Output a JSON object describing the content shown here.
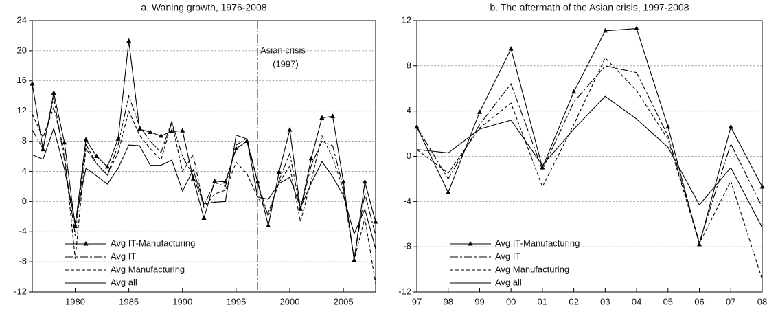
{
  "chart_data": [
    {
      "type": "line",
      "title": "a. Waning growth, 1976-2008",
      "x": [
        1976,
        1977,
        1978,
        1979,
        1980,
        1981,
        1982,
        1983,
        1984,
        1985,
        1986,
        1987,
        1988,
        1989,
        1990,
        1991,
        1992,
        1993,
        1994,
        1995,
        1996,
        1997,
        1998,
        1999,
        2000,
        2001,
        2002,
        2003,
        2004,
        2005,
        2006,
        2007,
        2008
      ],
      "xlim": [
        1976,
        2008
      ],
      "xticks": [
        1980,
        1985,
        1990,
        1995,
        2000,
        2005
      ],
      "ylim": [
        -12,
        24
      ],
      "yticks": [
        -12,
        -8,
        -4,
        0,
        4,
        8,
        12,
        16,
        20,
        24
      ],
      "grid": true,
      "vline": 1997,
      "annotation": [
        "Asian crisis",
        "(1997)"
      ],
      "legend": "lower left",
      "series": [
        {
          "name": "Avg IT-Manufacturing",
          "color": "#000000",
          "values": [
            15.6,
            6.9,
            14.4,
            7.8,
            -3.3,
            8.2,
            6.0,
            4.6,
            8.3,
            21.3,
            9.6,
            9.2,
            8.7,
            9.3,
            9.4,
            3.0,
            -2.2,
            2.7,
            2.6,
            7.0,
            8.0,
            2.6,
            -3.2,
            3.9,
            9.5,
            -1.0,
            5.7,
            11.1,
            11.3,
            2.6,
            -7.8,
            2.6,
            -2.7
          ]
        },
        {
          "name": "Avg IT",
          "color": "#000000",
          "values": [
            9.5,
            7.0,
            13.8,
            5.5,
            -4.5,
            7.6,
            5.0,
            3.5,
            7.5,
            14.0,
            10.0,
            8.0,
            6.5,
            10.6,
            6.0,
            3.4,
            -0.5,
            2.5,
            2.0,
            7.5,
            8.4,
            2.6,
            -2.0,
            2.8,
            6.4,
            -1.2,
            4.8,
            8.0,
            7.4,
            1.8,
            -7.6,
            1.1,
            -4.5
          ]
        },
        {
          "name": "Avg Manufacturing",
          "color": "#000000",
          "values": [
            11.6,
            8.5,
            12.5,
            6.5,
            -7.6,
            7.0,
            5.0,
            3.5,
            6.5,
            12.0,
            8.8,
            7.0,
            5.5,
            10.5,
            4.0,
            6.2,
            -0.8,
            1.0,
            1.5,
            5.2,
            3.7,
            0.6,
            -1.5,
            2.5,
            4.7,
            -2.7,
            2.8,
            8.7,
            5.8,
            1.5,
            -7.7,
            -2.2,
            -10.9
          ]
        },
        {
          "name": "Avg all",
          "color": "#000000",
          "values": [
            6.2,
            5.6,
            9.7,
            4.3,
            -2.8,
            4.4,
            3.4,
            2.3,
            4.4,
            7.5,
            7.4,
            4.8,
            4.8,
            5.5,
            1.4,
            4.2,
            -0.3,
            -0.1,
            0.0,
            8.8,
            8.3,
            0.6,
            0.3,
            2.4,
            3.2,
            -0.8,
            2.4,
            5.3,
            3.3,
            0.8,
            -4.3,
            -1.0,
            -6.3
          ]
        }
      ]
    },
    {
      "type": "line",
      "title": "b. The aftermath of the Asian crisis, 1997-2008",
      "categories": [
        "97",
        "98",
        "99",
        "00",
        "01",
        "02",
        "03",
        "04",
        "05",
        "06",
        "07",
        "08"
      ],
      "ylim": [
        -12,
        12
      ],
      "yticks": [
        -12,
        -8,
        -4,
        0,
        4,
        8,
        12
      ],
      "grid": true,
      "legend": "lower left",
      "series": [
        {
          "name": "Avg IT-Manufacturing",
          "color": "#000000",
          "values": [
            2.6,
            -3.2,
            3.9,
            9.5,
            -1.0,
            5.7,
            11.1,
            11.3,
            2.6,
            -7.8,
            2.6,
            -2.7
          ]
        },
        {
          "name": "Avg IT",
          "color": "#000000",
          "values": [
            2.6,
            -2.0,
            2.8,
            6.4,
            -1.2,
            4.8,
            8.0,
            7.4,
            1.8,
            -7.6,
            1.1,
            -4.5
          ]
        },
        {
          "name": "Avg Manufacturing",
          "color": "#000000",
          "values": [
            0.6,
            -1.5,
            2.5,
            4.7,
            -2.7,
            2.8,
            8.7,
            5.8,
            1.5,
            -7.7,
            -2.2,
            -10.9
          ]
        },
        {
          "name": "Avg all",
          "color": "#000000",
          "values": [
            0.6,
            0.3,
            2.4,
            3.2,
            -0.8,
            2.4,
            5.3,
            3.3,
            0.8,
            -4.3,
            -1.0,
            -6.3
          ]
        }
      ]
    }
  ]
}
